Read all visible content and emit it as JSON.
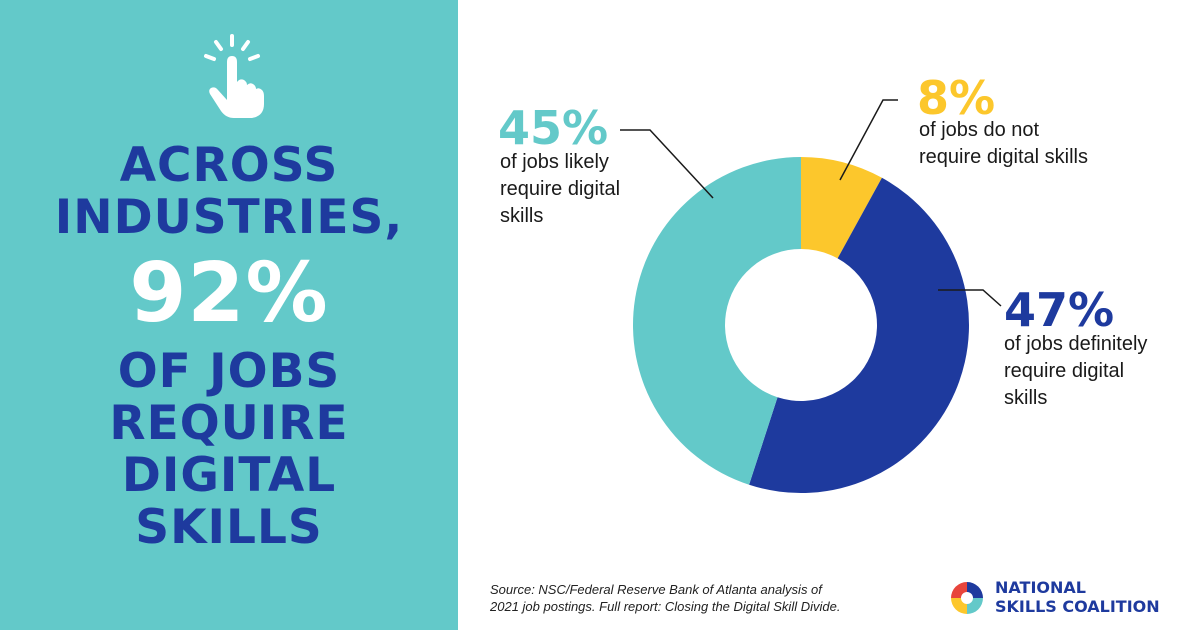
{
  "headline": {
    "line1": "ACROSS",
    "line2": "INDUSTRIES,",
    "big": "92%",
    "line3": "OF JOBS",
    "line4": "REQUIRE",
    "line5": "DIGITAL",
    "line6": "SKILLS"
  },
  "icons": {
    "hand": "pointing-hand-click-icon",
    "logo": "national-skills-coalition-logo-icon"
  },
  "colors": {
    "teal": "#63c9c9",
    "navy": "#1e3a9e",
    "yellow": "#fcc72c",
    "white": "#ffffff"
  },
  "chart_data": {
    "type": "pie",
    "donut": true,
    "categories": [
      "of jobs do not require digital skills",
      "of jobs definitely require digital skills",
      "of jobs likely require digital skills"
    ],
    "values": [
      8,
      47,
      45
    ],
    "labels": [
      "8%",
      "47%",
      "45%"
    ],
    "colors": [
      "#fcc72c",
      "#1e3a9e",
      "#63c9c9"
    ]
  },
  "annotations": {
    "a8": {
      "pct": "8%",
      "line1": "of jobs do not",
      "line2": "require digital skills"
    },
    "a47": {
      "pct": "47%",
      "line1": "of jobs definitely",
      "line2": "require digital",
      "line3": "skills"
    },
    "a45": {
      "pct": "45%",
      "line1": "of jobs likely",
      "line2": "require digital",
      "line3": "skills"
    }
  },
  "source": {
    "line1": "Source: NSC/Federal Reserve Bank of Atlanta analysis of",
    "line2": "2021 job postings. Full report: Closing the Digital Skill Divide."
  },
  "logo": {
    "line1": "NATIONAL",
    "line2": "SKILLS COALITION"
  }
}
